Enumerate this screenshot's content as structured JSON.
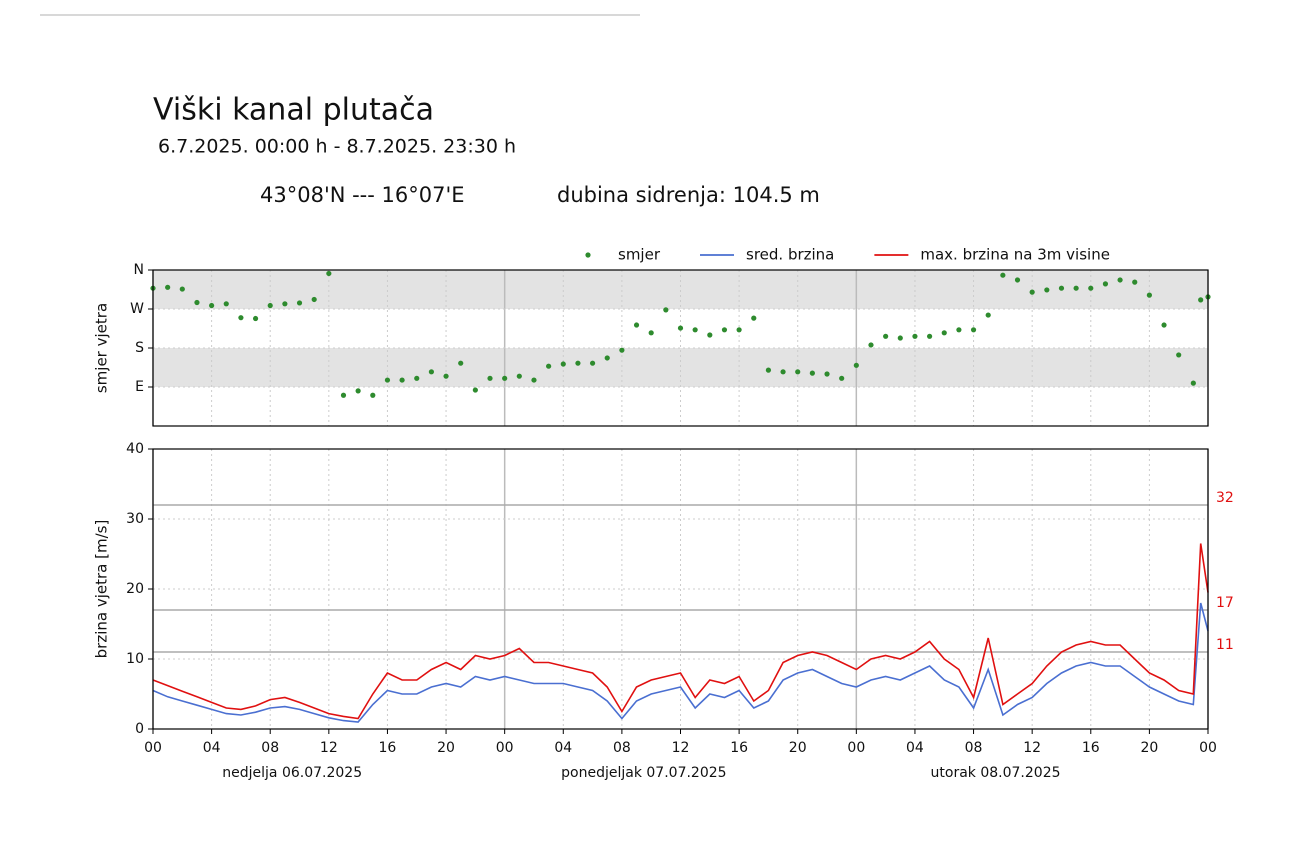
{
  "header": {
    "title": "Viški kanal plutača",
    "subtitle": "6.7.2025. 00:00 h - 8.7.2025. 23:30 h",
    "position": "43°08'N --- 16°07'E",
    "depth": "dubina sidrenja: 104.5 m"
  },
  "chart_data": [
    {
      "type": "scatter",
      "ylabel": "smjer vjetra",
      "ylim": [
        0,
        360
      ],
      "yticks": [
        {
          "value": 360,
          "label": "N"
        },
        {
          "value": 270,
          "label": "W"
        },
        {
          "value": 180,
          "label": "S"
        },
        {
          "value": 90,
          "label": "E"
        }
      ],
      "x": [
        0,
        1,
        2,
        3,
        4,
        5,
        6,
        7,
        8,
        9,
        10,
        11,
        12,
        13,
        14,
        15,
        16,
        17,
        18,
        19,
        20,
        21,
        22,
        23,
        24,
        25,
        26,
        27,
        28,
        29,
        30,
        31,
        32,
        33,
        34,
        35,
        36,
        37,
        38,
        39,
        40,
        41,
        42,
        43,
        44,
        45,
        46,
        47,
        48,
        49,
        50,
        51,
        52,
        53,
        54,
        55,
        56,
        57,
        58,
        59,
        60,
        61,
        62,
        63,
        64,
        65,
        66,
        67,
        68,
        69,
        70,
        71,
        71.5,
        72
      ],
      "series": [
        {
          "name": "smjer",
          "color": "#2e8b2e",
          "values": [
            318,
            320,
            316,
            285,
            278,
            282,
            250,
            248,
            278,
            282,
            284,
            292,
            352,
            71,
            81,
            71,
            106,
            106,
            110,
            125,
            115,
            145,
            83,
            110,
            110,
            115,
            106,
            138,
            143,
            145,
            145,
            157,
            175,
            233,
            215,
            268,
            226,
            222,
            210,
            222,
            222,
            249,
            129,
            125,
            125,
            122,
            120,
            110,
            140,
            187,
            207,
            203,
            207,
            207,
            215,
            222,
            222,
            256,
            348,
            337,
            309,
            314,
            318,
            318,
            318,
            328,
            337,
            332,
            302,
            233,
            164,
            99,
            291,
            298
          ]
        }
      ]
    },
    {
      "type": "line",
      "ylabel": "brzina vjetra [m/s]",
      "xlim": [
        0,
        72
      ],
      "xticks": [
        {
          "value": 0,
          "label": "00"
        },
        {
          "value": 4,
          "label": "04"
        },
        {
          "value": 8,
          "label": "08"
        },
        12,
        16,
        20,
        {
          "value": 24,
          "label": "00"
        },
        {
          "value": 28,
          "label": "04"
        },
        {
          "value": 32,
          "label": "08"
        },
        {
          "value": 36,
          "label": "12"
        },
        {
          "value": 40,
          "label": "16"
        },
        {
          "value": 44,
          "label": "20"
        },
        {
          "value": 48,
          "label": "00"
        },
        {
          "value": 52,
          "label": "04"
        },
        {
          "value": 56,
          "label": "08"
        },
        {
          "value": 60,
          "label": "12"
        },
        {
          "value": 64,
          "label": "16"
        },
        {
          "value": 68,
          "label": "20"
        },
        {
          "value": 72,
          "label": "00"
        }
      ],
      "day_labels": [
        "nedjelja  06.07.2025",
        "ponedjeljak  07.07.2025",
        "utorak  08.07.2025"
      ],
      "ylim": [
        0,
        40
      ],
      "yticks": [
        0,
        10,
        20,
        30,
        40
      ],
      "thresholds": [
        32,
        17,
        11
      ],
      "threshold_color": "#e01010",
      "x": [
        0,
        1,
        2,
        3,
        4,
        5,
        6,
        7,
        8,
        9,
        10,
        11,
        12,
        13,
        14,
        15,
        16,
        17,
        18,
        19,
        20,
        21,
        22,
        23,
        24,
        25,
        26,
        27,
        28,
        29,
        30,
        31,
        32,
        33,
        34,
        35,
        36,
        37,
        38,
        39,
        40,
        41,
        42,
        43,
        44,
        45,
        46,
        47,
        48,
        49,
        50,
        51,
        52,
        53,
        54,
        55,
        56,
        57,
        58,
        59,
        60,
        61,
        62,
        63,
        64,
        65,
        66,
        67,
        68,
        69,
        70,
        71,
        71.5,
        72
      ],
      "series": [
        {
          "name": "sred. brzina",
          "color": "#4a6fd1",
          "values": [
            5.5,
            4.6,
            4.0,
            3.4,
            2.8,
            2.2,
            2.0,
            2.4,
            3.0,
            3.2,
            2.8,
            2.2,
            1.6,
            1.2,
            1.0,
            3.5,
            5.5,
            5.0,
            5.0,
            6.0,
            6.5,
            6.0,
            7.5,
            7.0,
            7.5,
            7.0,
            6.5,
            6.5,
            6.5,
            6.0,
            5.5,
            4.0,
            1.5,
            4.0,
            5.0,
            5.5,
            6.0,
            3.0,
            5.0,
            4.5,
            5.5,
            3.0,
            4.0,
            7.0,
            8.0,
            8.5,
            7.5,
            6.5,
            6.0,
            7.0,
            7.5,
            7.0,
            8.0,
            9.0,
            7.0,
            6.0,
            3.0,
            8.5,
            2.0,
            3.5,
            4.5,
            6.5,
            8.0,
            9.0,
            9.5,
            9.0,
            9.0,
            7.5,
            6.0,
            5.0,
            4.0,
            3.5,
            18.0,
            14.0
          ]
        },
        {
          "name": "max. brzina na 3m visine",
          "color": "#e01010",
          "values": [
            7.0,
            6.2,
            5.4,
            4.6,
            3.8,
            3.0,
            2.8,
            3.3,
            4.2,
            4.5,
            3.8,
            3.0,
            2.2,
            1.8,
            1.5,
            5.0,
            8.0,
            7.0,
            7.0,
            8.5,
            9.5,
            8.5,
            10.5,
            10.0,
            10.5,
            11.5,
            9.5,
            9.5,
            9.0,
            8.5,
            8.0,
            6.0,
            2.5,
            6.0,
            7.0,
            7.5,
            8.0,
            4.5,
            7.0,
            6.5,
            7.5,
            4.0,
            5.5,
            9.5,
            10.5,
            11.0,
            10.5,
            9.5,
            8.5,
            10.0,
            10.5,
            10.0,
            11.0,
            12.5,
            10.0,
            8.5,
            4.5,
            13.0,
            3.5,
            5.0,
            6.5,
            9.0,
            11.0,
            12.0,
            12.5,
            12.0,
            12.0,
            10.0,
            8.0,
            7.0,
            5.5,
            5.0,
            26.5,
            19.5
          ]
        }
      ]
    }
  ]
}
